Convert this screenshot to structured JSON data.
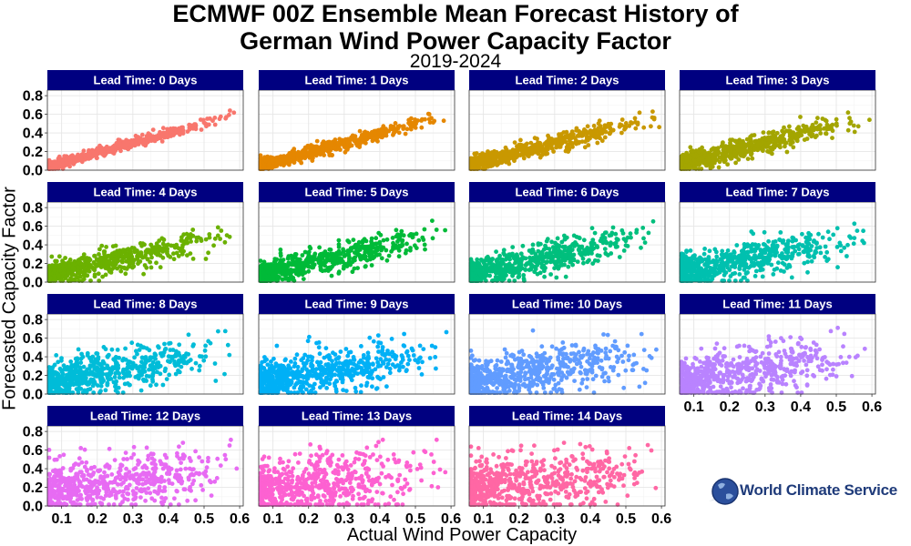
{
  "chart_data": {
    "type": "scatter",
    "title": "ECMWF 00Z Ensemble Mean Forecast History of\nGerman Wind Power Capacity Factor",
    "subtitle": "2019-2024",
    "xlabel": "Actual Wind Power Capacity",
    "ylabel": "Forecasted Capacity Factor",
    "xlim": [
      0.06,
      0.61
    ],
    "ylim": [
      0.0,
      0.86
    ],
    "x_ticks": [
      "0.1",
      "0.2",
      "0.3",
      "0.4",
      "0.5",
      "0.6"
    ],
    "y_ticks": [
      "0.0",
      "0.2",
      "0.4",
      "0.6",
      "0.8"
    ],
    "grid": true,
    "strip_color": "#000080",
    "panels": [
      {
        "label": "Lead Time: 0 Days",
        "lead_days": 0,
        "color": "#F8766D",
        "approx_points": [
          [
            0.08,
            0.04
          ],
          [
            0.15,
            0.12
          ],
          [
            0.25,
            0.23
          ],
          [
            0.35,
            0.33
          ],
          [
            0.45,
            0.44
          ],
          [
            0.55,
            0.56
          ],
          [
            0.6,
            0.66
          ]
        ]
      },
      {
        "label": "Lead Time: 1 Days",
        "lead_days": 1,
        "color": "#E58700",
        "approx_points": [
          [
            0.08,
            0.04
          ],
          [
            0.15,
            0.12
          ],
          [
            0.25,
            0.23
          ],
          [
            0.35,
            0.33
          ],
          [
            0.45,
            0.44
          ],
          [
            0.55,
            0.55
          ],
          [
            0.6,
            0.65
          ]
        ]
      },
      {
        "label": "Lead Time: 2 Days",
        "lead_days": 2,
        "color": "#C99800",
        "approx_points": [
          [
            0.08,
            0.04
          ],
          [
            0.15,
            0.12
          ],
          [
            0.25,
            0.23
          ],
          [
            0.35,
            0.33
          ],
          [
            0.45,
            0.44
          ],
          [
            0.55,
            0.55
          ],
          [
            0.6,
            0.65
          ]
        ]
      },
      {
        "label": "Lead Time: 3 Days",
        "lead_days": 3,
        "color": "#A3A500",
        "approx_points": [
          [
            0.08,
            0.05
          ],
          [
            0.15,
            0.12
          ],
          [
            0.25,
            0.22
          ],
          [
            0.35,
            0.33
          ],
          [
            0.45,
            0.43
          ],
          [
            0.55,
            0.55
          ],
          [
            0.6,
            0.66
          ]
        ]
      },
      {
        "label": "Lead Time: 4 Days",
        "lead_days": 4,
        "color": "#6BB100",
        "approx_points": [
          [
            0.08,
            0.05
          ],
          [
            0.15,
            0.12
          ],
          [
            0.25,
            0.22
          ],
          [
            0.35,
            0.32
          ],
          [
            0.45,
            0.42
          ],
          [
            0.55,
            0.55
          ],
          [
            0.6,
            0.66
          ]
        ]
      },
      {
        "label": "Lead Time: 5 Days",
        "lead_days": 5,
        "color": "#00BA38",
        "approx_points": [
          [
            0.08,
            0.06
          ],
          [
            0.15,
            0.13
          ],
          [
            0.25,
            0.22
          ],
          [
            0.35,
            0.31
          ],
          [
            0.45,
            0.41
          ],
          [
            0.55,
            0.54
          ],
          [
            0.6,
            0.65
          ]
        ]
      },
      {
        "label": "Lead Time: 6 Days",
        "lead_days": 6,
        "color": "#00BF7D",
        "approx_points": [
          [
            0.08,
            0.07
          ],
          [
            0.15,
            0.14
          ],
          [
            0.25,
            0.22
          ],
          [
            0.35,
            0.3
          ],
          [
            0.45,
            0.4
          ],
          [
            0.55,
            0.5
          ],
          [
            0.6,
            0.64
          ]
        ]
      },
      {
        "label": "Lead Time: 7 Days",
        "lead_days": 7,
        "color": "#00C0AF",
        "approx_points": [
          [
            0.08,
            0.08
          ],
          [
            0.15,
            0.15
          ],
          [
            0.25,
            0.22
          ],
          [
            0.35,
            0.3
          ],
          [
            0.45,
            0.38
          ],
          [
            0.55,
            0.48
          ],
          [
            0.6,
            0.62
          ]
        ]
      },
      {
        "label": "Lead Time: 8 Days",
        "lead_days": 8,
        "color": "#00BCD8",
        "approx_points": [
          [
            0.08,
            0.1
          ],
          [
            0.15,
            0.16
          ],
          [
            0.25,
            0.23
          ],
          [
            0.35,
            0.29
          ],
          [
            0.45,
            0.36
          ],
          [
            0.55,
            0.45
          ],
          [
            0.6,
            0.6
          ]
        ]
      },
      {
        "label": "Lead Time: 9 Days",
        "lead_days": 9,
        "color": "#00B0F6",
        "approx_points": [
          [
            0.08,
            0.11
          ],
          [
            0.15,
            0.17
          ],
          [
            0.25,
            0.23
          ],
          [
            0.35,
            0.29
          ],
          [
            0.45,
            0.35
          ],
          [
            0.55,
            0.43
          ],
          [
            0.6,
            0.58
          ]
        ]
      },
      {
        "label": "Lead Time: 10 Days",
        "lead_days": 10,
        "color": "#619CFF",
        "approx_points": [
          [
            0.08,
            0.12
          ],
          [
            0.15,
            0.18
          ],
          [
            0.25,
            0.23
          ],
          [
            0.35,
            0.28
          ],
          [
            0.45,
            0.33
          ],
          [
            0.55,
            0.4
          ],
          [
            0.6,
            0.55
          ]
        ]
      },
      {
        "label": "Lead Time: 11 Days",
        "lead_days": 11,
        "color": "#B983FF",
        "approx_points": [
          [
            0.08,
            0.13
          ],
          [
            0.15,
            0.19
          ],
          [
            0.25,
            0.23
          ],
          [
            0.35,
            0.28
          ],
          [
            0.45,
            0.32
          ],
          [
            0.55,
            0.38
          ],
          [
            0.6,
            0.52
          ]
        ]
      },
      {
        "label": "Lead Time: 12 Days",
        "lead_days": 12,
        "color": "#E76BF3",
        "approx_points": [
          [
            0.08,
            0.14
          ],
          [
            0.15,
            0.19
          ],
          [
            0.25,
            0.23
          ],
          [
            0.35,
            0.27
          ],
          [
            0.45,
            0.31
          ],
          [
            0.55,
            0.36
          ],
          [
            0.6,
            0.5
          ]
        ]
      },
      {
        "label": "Lead Time: 13 Days",
        "lead_days": 13,
        "color": "#FD61D1",
        "approx_points": [
          [
            0.08,
            0.14
          ],
          [
            0.15,
            0.2
          ],
          [
            0.25,
            0.23
          ],
          [
            0.35,
            0.27
          ],
          [
            0.45,
            0.3
          ],
          [
            0.55,
            0.35
          ],
          [
            0.6,
            0.48
          ]
        ]
      },
      {
        "label": "Lead Time: 14 Days",
        "lead_days": 14,
        "color": "#FF67A4",
        "approx_points": [
          [
            0.08,
            0.15
          ],
          [
            0.15,
            0.2
          ],
          [
            0.25,
            0.23
          ],
          [
            0.35,
            0.27
          ],
          [
            0.45,
            0.3
          ],
          [
            0.55,
            0.34
          ],
          [
            0.6,
            0.46
          ]
        ]
      }
    ]
  },
  "logo": {
    "text": "World Climate Service",
    "icon": "globe-icon",
    "color": "#1f3b7a"
  }
}
